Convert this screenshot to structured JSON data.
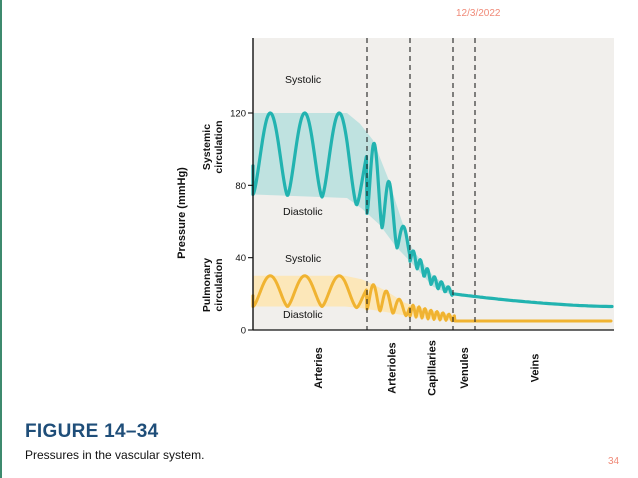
{
  "slide": {
    "date": "12/3/2022",
    "number": "34"
  },
  "figure": {
    "label": "FIGURE 14–34",
    "caption": "Pressures in the vascular system."
  },
  "chart_data": {
    "type": "line",
    "xlabel": "",
    "ylabel": "Pressure (mmHg)",
    "ylim": [
      0,
      160
    ],
    "yticks": [
      0,
      40,
      80,
      120
    ],
    "group_labels": {
      "systemic": "Systemic circulation",
      "pulmonary": "Pulmonary circulation"
    },
    "categories": [
      "Arteries",
      "Arterioles",
      "Capillaries",
      "Venules",
      "Veins"
    ],
    "systemic": {
      "color": "#22b3b0",
      "band_color": "#b9e0df",
      "systolic_label": "Systolic",
      "diastolic_label": "Diastolic",
      "arteries_systolic": 120,
      "arteries_diastolic": 75,
      "arteriole_peak": 93,
      "capillaries_start": 44,
      "capillaries_end": 26,
      "venules": 20,
      "veins_end": 13
    },
    "pulmonary": {
      "color": "#f0b331",
      "band_color": "#fde6b4",
      "systolic_label": "Systolic",
      "diastolic_label": "Diastolic",
      "arteries_systolic": 30,
      "arteries_diastolic": 13,
      "capillaries": 8,
      "veins": 5
    }
  }
}
